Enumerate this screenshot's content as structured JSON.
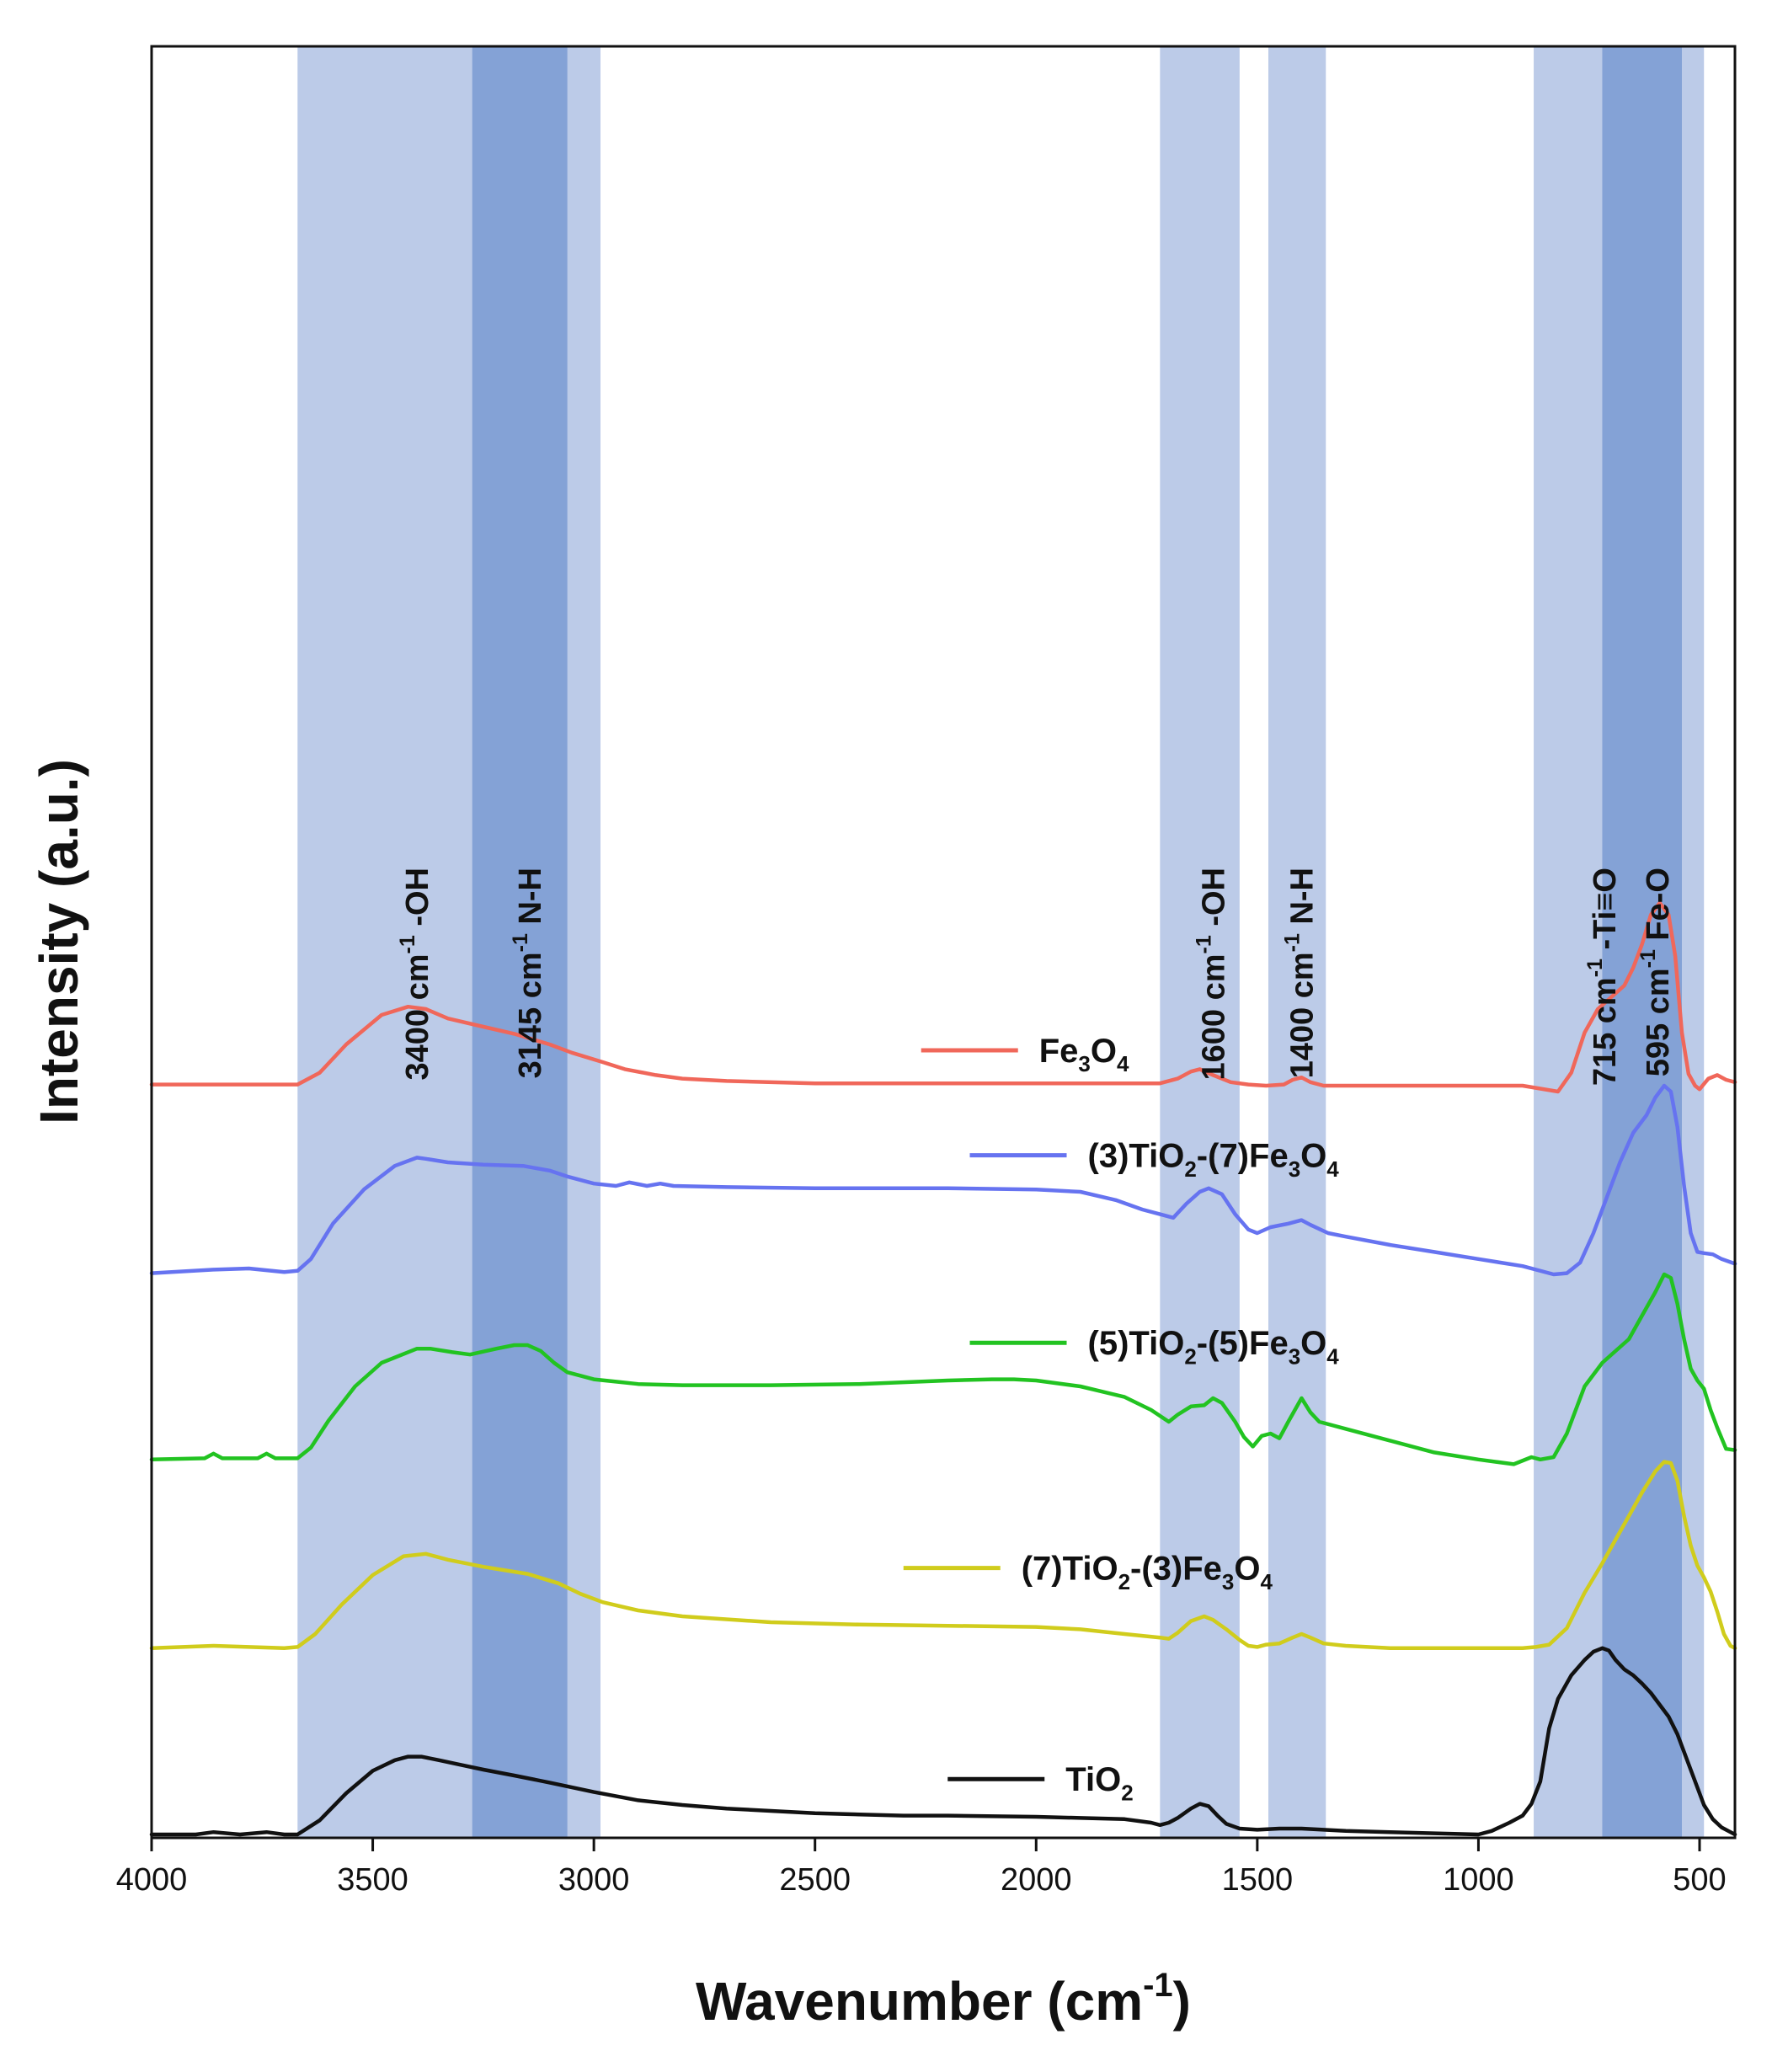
{
  "chart_data": {
    "type": "line",
    "title": "",
    "xlabel": "Wavenumber (cm",
    "xlabel_sup": "-1",
    "xlabel_tail": ")",
    "ylabel": "Intensity (a.u.)",
    "xlim": [
      4000,
      420
    ],
    "x_reversed": true,
    "ylim": [
      0,
      100
    ],
    "y_ticks_shown": false,
    "grid": false,
    "x_ticks": [
      {
        "value": 4000,
        "label": "4000"
      },
      {
        "value": 3500,
        "label": "3500"
      },
      {
        "value": 3000,
        "label": "3000"
      },
      {
        "value": 2500,
        "label": "2500"
      },
      {
        "value": 2000,
        "label": "2000"
      },
      {
        "value": 1500,
        "label": "1500"
      },
      {
        "value": 1000,
        "label": "1000"
      },
      {
        "value": 500,
        "label": "500"
      }
    ],
    "bands": [
      {
        "from": 3670,
        "to": 2985,
        "shade": "light",
        "name": "oh-stretch-band"
      },
      {
        "from": 3275,
        "to": 3060,
        "shade": "dark",
        "name": "nh-stretch-band"
      },
      {
        "from": 1720,
        "to": 1540,
        "shade": "light",
        "name": "oh-bend-band"
      },
      {
        "from": 1475,
        "to": 1345,
        "shade": "light",
        "name": "nh-bend-band"
      },
      {
        "from": 875,
        "to": 490,
        "shade": "light",
        "name": "ti-o-band"
      },
      {
        "from": 720,
        "to": 540,
        "shade": "dark",
        "name": "fe-o-band"
      }
    ],
    "band_colors": {
      "light": "#bccbe8",
      "dark": "#84a2d6"
    },
    "annotations": [
      {
        "x": 3400,
        "y": 82.0,
        "parts": [
          [
            "3400 cm",
            ""
          ],
          [
            "-1",
            "sup"
          ],
          [
            " -OH",
            ""
          ]
        ]
      },
      {
        "x": 3145,
        "y": 82.0,
        "parts": [
          [
            "3145 cm",
            ""
          ],
          [
            "-1",
            "sup"
          ],
          [
            " N-H",
            ""
          ]
        ]
      },
      {
        "x": 1600,
        "y": 82.0,
        "parts": [
          [
            "1600 cm",
            ""
          ],
          [
            "-1",
            "sup"
          ],
          [
            " -OH",
            ""
          ]
        ]
      },
      {
        "x": 1400,
        "y": 82.0,
        "parts": [
          [
            "1400 cm",
            ""
          ],
          [
            "-1",
            "sup"
          ],
          [
            " N-H",
            ""
          ]
        ]
      },
      {
        "x": 715,
        "y": 82.0,
        "parts": [
          [
            "715 cm",
            ""
          ],
          [
            "-1",
            "sup"
          ],
          [
            " -Ti≡O",
            ""
          ]
        ]
      },
      {
        "x": 595,
        "y": 82.0,
        "parts": [
          [
            "595 cm",
            ""
          ],
          [
            "-1",
            "sup"
          ],
          [
            " Fe-O",
            ""
          ]
        ]
      }
    ],
    "series": [
      {
        "name": "Fe3O4",
        "color": "#f0675a",
        "legend_parts": [
          [
            "Fe",
            ""
          ],
          [
            "3",
            "sub"
          ],
          [
            "O",
            ""
          ],
          [
            "4",
            "sub"
          ]
        ],
        "legend_anchor": {
          "x": 2260,
          "y": 66.5
        },
        "x": [
          4000,
          3800,
          3670,
          3620,
          3560,
          3480,
          3420,
          3380,
          3330,
          3250,
          3180,
          3100,
          3050,
          2980,
          2930,
          2860,
          2800,
          2700,
          2500,
          2200,
          2000,
          1800,
          1720,
          1680,
          1650,
          1630,
          1600,
          1560,
          1520,
          1480,
          1440,
          1420,
          1400,
          1380,
          1350,
          1300,
          1200,
          1100,
          1000,
          900,
          820,
          790,
          760,
          730,
          700,
          670,
          650,
          630,
          610,
          590,
          570,
          555,
          540,
          525,
          510,
          500,
          480,
          460,
          440,
          420
        ],
        "y": [
          63.6,
          63.6,
          63.6,
          64.6,
          67.0,
          69.5,
          70.2,
          70.0,
          69.2,
          68.5,
          67.9,
          67.0,
          66.3,
          65.5,
          64.9,
          64.4,
          64.1,
          63.9,
          63.7,
          63.7,
          63.7,
          63.7,
          63.7,
          64.1,
          64.7,
          64.9,
          64.4,
          63.8,
          63.6,
          63.5,
          63.6,
          64.0,
          64.2,
          63.8,
          63.5,
          63.5,
          63.5,
          63.5,
          63.5,
          63.5,
          63.0,
          64.6,
          68.0,
          70.0,
          71.0,
          72.0,
          73.5,
          75.5,
          78.0,
          79.0,
          78.0,
          74.5,
          68.0,
          64.5,
          63.5,
          63.2,
          64.1,
          64.4,
          64.0,
          63.8
        ]
      },
      {
        "name": "(3)TiO2-(7)Fe3O4",
        "color": "#6673f0",
        "legend_parts": [
          [
            "(3)TiO",
            ""
          ],
          [
            "2",
            "sub"
          ],
          [
            "-(7)Fe",
            ""
          ],
          [
            "3",
            "sub"
          ],
          [
            "O",
            ""
          ],
          [
            "4",
            "sub"
          ]
        ],
        "legend_anchor": {
          "x": 2150,
          "y": 57.6
        },
        "x": [
          4000,
          3860,
          3780,
          3700,
          3670,
          3640,
          3590,
          3520,
          3450,
          3400,
          3380,
          3330,
          3250,
          3160,
          3100,
          3060,
          3000,
          2950,
          2920,
          2880,
          2850,
          2820,
          2700,
          2500,
          2200,
          2000,
          1900,
          1820,
          1760,
          1720,
          1690,
          1660,
          1630,
          1610,
          1580,
          1550,
          1520,
          1500,
          1470,
          1430,
          1400,
          1380,
          1340,
          1300,
          1200,
          1100,
          1000,
          900,
          830,
          800,
          770,
          740,
          710,
          680,
          650,
          620,
          600,
          580,
          565,
          550,
          535,
          520,
          505,
          490,
          470,
          450,
          420
        ],
        "y": [
          47.6,
          47.9,
          48.0,
          47.7,
          47.8,
          48.8,
          51.8,
          54.7,
          56.7,
          57.4,
          57.3,
          57.0,
          56.8,
          56.7,
          56.3,
          55.8,
          55.2,
          55.0,
          55.3,
          55.0,
          55.2,
          55.0,
          54.9,
          54.8,
          54.8,
          54.7,
          54.5,
          53.8,
          53.0,
          52.6,
          52.3,
          53.5,
          54.5,
          54.8,
          54.3,
          52.6,
          51.3,
          51.0,
          51.5,
          51.8,
          52.1,
          51.7,
          51.0,
          50.7,
          50.0,
          49.4,
          48.8,
          48.2,
          47.5,
          47.6,
          48.5,
          51.0,
          54.0,
          57.0,
          59.5,
          61.0,
          62.5,
          63.5,
          63.0,
          60.0,
          55.0,
          51.0,
          49.4,
          49.3,
          49.2,
          48.8,
          48.4
        ]
      },
      {
        "name": "(5)TiO2-(5)Fe3O4",
        "color": "#22c321",
        "legend_parts": [
          [
            "(5)TiO",
            ""
          ],
          [
            "2",
            "sub"
          ],
          [
            "-(5)Fe",
            ""
          ],
          [
            "3",
            "sub"
          ],
          [
            "O",
            ""
          ],
          [
            "4",
            "sub"
          ]
        ],
        "legend_anchor": {
          "x": 2150,
          "y": 41.7
        },
        "x": [
          4000,
          3880,
          3860,
          3840,
          3760,
          3740,
          3720,
          3670,
          3640,
          3600,
          3540,
          3480,
          3400,
          3370,
          3320,
          3280,
          3220,
          3180,
          3150,
          3120,
          3090,
          3060,
          3000,
          2950,
          2900,
          2800,
          2600,
          2400,
          2200,
          2100,
          2050,
          2000,
          1900,
          1800,
          1740,
          1700,
          1680,
          1650,
          1620,
          1600,
          1580,
          1550,
          1530,
          1510,
          1490,
          1470,
          1450,
          1430,
          1400,
          1380,
          1360,
          1300,
          1200,
          1100,
          1000,
          960,
          920,
          880,
          860,
          830,
          800,
          760,
          720,
          690,
          660,
          630,
          600,
          580,
          565,
          550,
          535,
          520,
          505,
          490,
          475,
          460,
          440,
          420
        ],
        "y": [
          31.8,
          31.9,
          32.3,
          31.9,
          31.9,
          32.3,
          31.9,
          31.9,
          32.8,
          35.1,
          38.0,
          40.0,
          41.2,
          41.2,
          40.9,
          40.7,
          41.2,
          41.5,
          41.5,
          41.0,
          40.0,
          39.2,
          38.6,
          38.4,
          38.2,
          38.1,
          38.1,
          38.2,
          38.5,
          38.6,
          38.6,
          38.5,
          38.0,
          37.1,
          36.0,
          35.0,
          35.6,
          36.3,
          36.4,
          37.0,
          36.6,
          35.0,
          33.7,
          32.9,
          33.8,
          34.0,
          33.6,
          35.0,
          37.0,
          35.8,
          35.0,
          34.4,
          33.4,
          32.4,
          31.8,
          31.6,
          31.4,
          32.0,
          31.8,
          32.0,
          34.0,
          38.0,
          40.0,
          41.0,
          42.0,
          44.0,
          46.0,
          47.5,
          47.2,
          45.0,
          42.0,
          39.5,
          38.5,
          37.8,
          36.0,
          34.5,
          32.7,
          32.6
        ]
      },
      {
        "name": "(7)TiO2-(3)Fe3O4",
        "color": "#d0cc1c",
        "legend_parts": [
          [
            "(7)TiO",
            ""
          ],
          [
            "2",
            "sub"
          ],
          [
            "-(3)Fe",
            ""
          ],
          [
            "3",
            "sub"
          ],
          [
            "O",
            ""
          ],
          [
            "4",
            "sub"
          ]
        ],
        "legend_anchor": {
          "x": 2300,
          "y": 22.6
        },
        "x": [
          4000,
          3860,
          3780,
          3700,
          3670,
          3630,
          3570,
          3500,
          3430,
          3380,
          3330,
          3250,
          3150,
          3080,
          3030,
          2980,
          2900,
          2800,
          2600,
          2400,
          2200,
          2000,
          1900,
          1800,
          1720,
          1700,
          1680,
          1650,
          1620,
          1600,
          1570,
          1540,
          1520,
          1500,
          1480,
          1450,
          1420,
          1400,
          1380,
          1350,
          1300,
          1200,
          1100,
          1000,
          960,
          900,
          870,
          840,
          800,
          760,
          720,
          690,
          660,
          630,
          600,
          580,
          565,
          550,
          535,
          520,
          505,
          490,
          475,
          460,
          445,
          430,
          420
        ],
        "y": [
          15.8,
          16.0,
          15.9,
          15.8,
          15.9,
          17.0,
          19.5,
          22.0,
          23.6,
          23.8,
          23.3,
          22.7,
          22.1,
          21.3,
          20.4,
          19.7,
          19.0,
          18.5,
          18.0,
          17.8,
          17.7,
          17.6,
          17.4,
          17.0,
          16.7,
          16.6,
          17.1,
          18.1,
          18.5,
          18.2,
          17.4,
          16.5,
          16.0,
          15.9,
          16.1,
          16.2,
          16.7,
          17.0,
          16.7,
          16.2,
          16.0,
          15.8,
          15.8,
          15.8,
          15.8,
          15.8,
          15.9,
          16.1,
          17.5,
          20.5,
          23.0,
          25.0,
          27.0,
          29.0,
          30.8,
          31.6,
          31.5,
          30.0,
          27.0,
          24.5,
          22.8,
          21.8,
          20.6,
          18.9,
          17.0,
          16.0,
          15.8
        ]
      },
      {
        "name": "TiO2",
        "color": "#111111",
        "legend_parts": [
          [
            "TiO",
            ""
          ],
          [
            "2",
            "sub"
          ]
        ],
        "legend_anchor": {
          "x": 2200,
          "y": 4.7
        },
        "x": [
          4000,
          3900,
          3860,
          3800,
          3740,
          3700,
          3670,
          3620,
          3560,
          3500,
          3450,
          3420,
          3390,
          3350,
          3300,
          3250,
          3180,
          3100,
          3000,
          2900,
          2800,
          2700,
          2600,
          2500,
          2400,
          2300,
          2200,
          2000,
          1900,
          1800,
          1740,
          1720,
          1700,
          1680,
          1650,
          1630,
          1610,
          1590,
          1570,
          1540,
          1500,
          1450,
          1400,
          1350,
          1300,
          1200,
          1100,
          1000,
          970,
          930,
          900,
          880,
          860,
          840,
          820,
          790,
          760,
          740,
          720,
          705,
          690,
          670,
          650,
          630,
          610,
          590,
          570,
          550,
          530,
          510,
          490,
          470,
          450,
          430,
          420
        ],
        "y": [
          0.0,
          0.0,
          0.2,
          0.0,
          0.2,
          0.0,
          0.0,
          1.2,
          3.5,
          5.4,
          6.3,
          6.6,
          6.6,
          6.3,
          5.9,
          5.5,
          5.0,
          4.4,
          3.6,
          2.9,
          2.5,
          2.2,
          2.0,
          1.8,
          1.7,
          1.6,
          1.6,
          1.5,
          1.4,
          1.3,
          1.0,
          0.8,
          1.0,
          1.4,
          2.2,
          2.6,
          2.4,
          1.6,
          0.9,
          0.5,
          0.4,
          0.5,
          0.5,
          0.4,
          0.3,
          0.2,
          0.1,
          0.0,
          0.3,
          1.0,
          1.6,
          2.6,
          4.5,
          9.0,
          11.5,
          13.5,
          14.8,
          15.5,
          15.8,
          15.6,
          14.8,
          14.0,
          13.5,
          12.8,
          12.0,
          11.0,
          10.0,
          8.5,
          6.5,
          4.5,
          2.5,
          1.3,
          0.6,
          0.2,
          0.0
        ]
      }
    ]
  }
}
